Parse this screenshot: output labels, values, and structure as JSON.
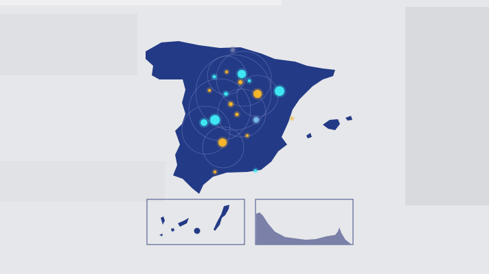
{
  "colors": {
    "background": "#e6e7ea",
    "land": "#233a86",
    "land_light": "#7a80a8",
    "inset_border": "#5a6496",
    "marker_cyan": "#3de6f2",
    "marker_orange": "#f4b52a",
    "marker_lightblue": "#7ab8e6",
    "marker_grey": "#6c76a8"
  },
  "map": {
    "region": "Spain",
    "insets": [
      "canary-islands",
      "ceuta-melilla-coast"
    ]
  }
}
